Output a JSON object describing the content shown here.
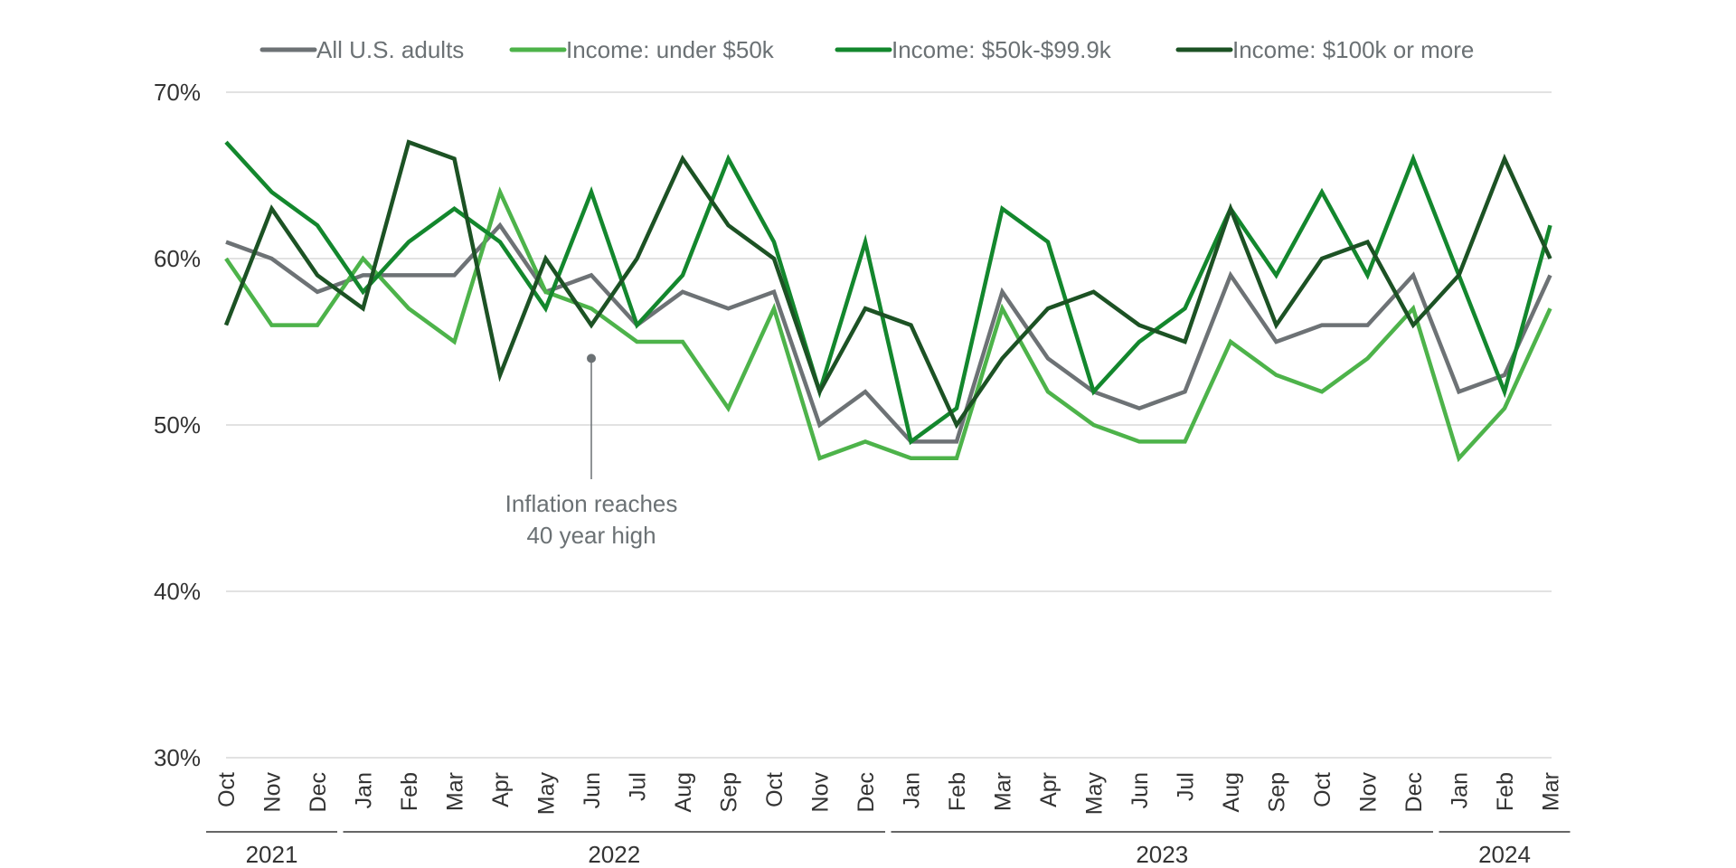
{
  "chart_data": {
    "type": "line",
    "title": "",
    "xlabel": "",
    "ylabel": "",
    "ylim": [
      30,
      70
    ],
    "y_ticks": [
      "70%",
      "60%",
      "50%",
      "40%",
      "30%"
    ],
    "y_tick_values": [
      70,
      60,
      50,
      40,
      30
    ],
    "grid": true,
    "legend_position": "top",
    "categories": [
      "Oct",
      "Nov",
      "Dec",
      "Jan",
      "Feb",
      "Mar",
      "Apr",
      "May",
      "Jun",
      "Jul",
      "Aug",
      "Sep",
      "Oct",
      "Nov",
      "Dec",
      "Jan",
      "Feb",
      "Mar",
      "Apr",
      "May",
      "Jun",
      "Jul",
      "Aug",
      "Sep",
      "Oct",
      "Nov",
      "Dec",
      "Jan",
      "Feb",
      "Mar"
    ],
    "years": [
      {
        "label": "2021",
        "start": 0,
        "end": 2
      },
      {
        "label": "2022",
        "start": 3,
        "end": 14
      },
      {
        "label": "2023",
        "start": 15,
        "end": 26
      },
      {
        "label": "2024",
        "start": 27,
        "end": 29
      }
    ],
    "series": [
      {
        "name": "All U.S. adults",
        "color": "#6d7275",
        "values": [
          61,
          60,
          58,
          59,
          59,
          59,
          62,
          58,
          59,
          56,
          58,
          57,
          58,
          50,
          52,
          49,
          49,
          58,
          54,
          52,
          51,
          52,
          59,
          55,
          56,
          56,
          59,
          52,
          53,
          59
        ]
      },
      {
        "name": "Income: under $50k",
        "color": "#4db34a",
        "values": [
          60,
          56,
          56,
          60,
          57,
          55,
          64,
          58,
          57,
          55,
          55,
          51,
          57,
          48,
          49,
          48,
          48,
          57,
          52,
          50,
          49,
          49,
          55,
          53,
          52,
          54,
          57,
          48,
          51,
          57
        ]
      },
      {
        "name": "Income: $50k-$99.9k",
        "color": "#13872d",
        "values": [
          67,
          64,
          62,
          58,
          61,
          63,
          61,
          57,
          64,
          56,
          59,
          66,
          61,
          52,
          61,
          49,
          51,
          63,
          61,
          52,
          55,
          57,
          63,
          59,
          64,
          59,
          66,
          59,
          52,
          62
        ]
      },
      {
        "name": "Income: $100k or more",
        "color": "#1c5224",
        "values": [
          56,
          63,
          59,
          57,
          67,
          66,
          53,
          60,
          56,
          60,
          66,
          62,
          60,
          52,
          57,
          56,
          50,
          54,
          57,
          58,
          56,
          55,
          63,
          56,
          60,
          61,
          56,
          59,
          66,
          60
        ]
      }
    ],
    "annotation": {
      "line1": "Inflation reaches",
      "line2": "40 year high",
      "category_index": 8,
      "value": 54
    }
  }
}
